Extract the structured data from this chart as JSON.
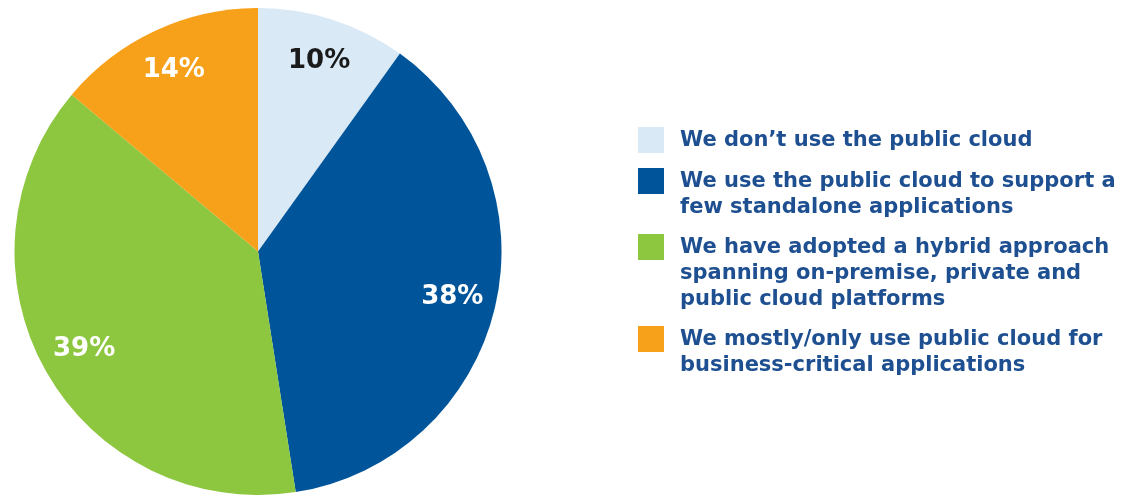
{
  "chart_data": {
    "type": "pie",
    "categories": [
      "We don’t use the public cloud",
      "We use the public cloud to support a few standalone applications",
      "We have adopted a hybrid approach spanning on-premise, private and public cloud platforms",
      "We mostly/only use public cloud for business-critical applications"
    ],
    "values": [
      10,
      38,
      39,
      14
    ],
    "colors": [
      "#dae9f6",
      "#00549a",
      "#8dc63f",
      "#f7a11a"
    ],
    "value_labels": [
      "10%",
      "38%",
      "39%",
      "14%"
    ],
    "legend": "right"
  }
}
